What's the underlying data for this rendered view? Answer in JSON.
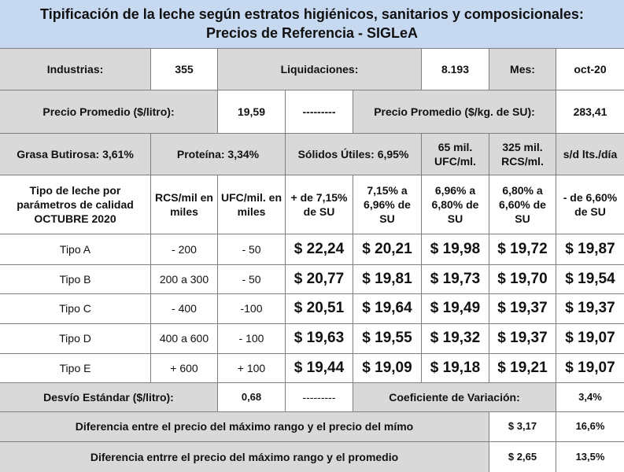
{
  "title": {
    "line1": "Tipificación de la leche según estratos higiénicos, sanitarios y composicionales:",
    "line2": "Precios de Referencia - SIGLeA"
  },
  "summary_rows": [
    [
      "Industrias:",
      "355",
      "Liquidaciones:",
      "8.193",
      "Mes:",
      "oct-20"
    ],
    [
      "Precio Promedio ($/litro):",
      "19,59",
      "---------",
      "Precio Promedio ($/kg. de SU):",
      "283,41"
    ],
    [
      "Grasa Butirosa: 3,61%",
      "Proteína: 3,34%",
      "Sólidos Útiles: 6,95%",
      "65 mil. UFC/ml.",
      "325 mil. RCS/ml.",
      "s/d lts./día"
    ]
  ],
  "table": {
    "header": [
      "Tipo de leche por parámetros de calidad OCTUBRE 2020",
      "RCS/mil en miles",
      "UFC/mil. en miles",
      "+ de 7,15% de SU",
      "7,15% a 6,96% de SU",
      "6,96% a 6,80% de SU",
      "6,80% a 6,60% de SU",
      "- de 6,60% de SU"
    ],
    "rows": [
      [
        "Tipo A",
        "- 200",
        "- 50",
        "$ 22,24",
        "$ 20,21",
        "$ 19,98",
        "$ 19,72",
        "$ 19,87"
      ],
      [
        "Tipo B",
        "200 a 300",
        "- 50",
        "$ 20,77",
        "$ 19,81",
        "$ 19,73",
        "$ 19,70",
        "$ 19,54"
      ],
      [
        "Tipo C",
        "- 400",
        "-100",
        "$ 20,51",
        "$ 19,64",
        "$ 19,49",
        "$ 19,37",
        "$ 19,37"
      ],
      [
        "Tipo D",
        "400 a 600",
        "- 100",
        "$ 19,63",
        "$ 19,55",
        "$ 19,32",
        "$ 19,37",
        "$ 19,07"
      ],
      [
        "Tipo E",
        "+ 600",
        "+ 100",
        "$ 19,44",
        "$ 19,09",
        "$ 19,18",
        "$ 19,21",
        "$ 19,07"
      ]
    ]
  },
  "footer_rows": [
    [
      "Desvío Estándar ($/litro):",
      "0,68",
      "---------",
      "Coeficiente de Variación:",
      "3,4%"
    ],
    [
      "Diferencia entre el precio del máximo rango y el precio del mímo",
      "$ 3,17",
      "16,6%"
    ],
    [
      "Diferencia entrre el precio del máximo rango y el promedio",
      "$ 2,65",
      "13,5%"
    ]
  ]
}
